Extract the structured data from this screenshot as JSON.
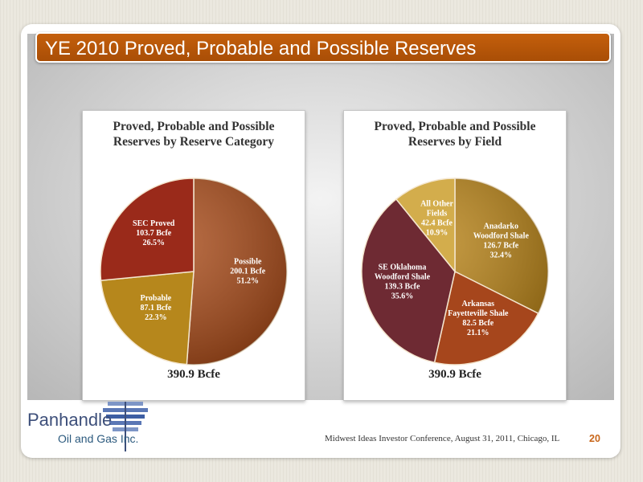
{
  "slide": {
    "title": "YE 2010 Proved, Probable and Possible Reserves",
    "footer_text": "Midwest Ideas Investor Conference, August 31, 2011, Chicago, IL",
    "page_number": "20",
    "logo": {
      "line1": "Panhandle",
      "line2": "Oil and Gas Inc."
    }
  },
  "chart_data": [
    {
      "type": "pie",
      "title_line1": "Proved, Probable and Possible",
      "title_line2": "Reserves by Reserve Category",
      "total": "390.9 Bcfe",
      "slices": [
        {
          "label": "Possible",
          "value_text": "200.1 Bcfe",
          "pct_text": "51.2%",
          "value": 200.1,
          "percent": 51.2,
          "color": "#a94d1c"
        },
        {
          "label": "Probable",
          "value_text": "87.1 Bcfe",
          "pct_text": "22.3%",
          "value": 87.1,
          "percent": 22.3,
          "color": "#b6871c"
        },
        {
          "label": "SEC Proved",
          "value_text": "103.7 Bcfe",
          "pct_text": "26.5%",
          "value": 103.7,
          "percent": 26.5,
          "color": "#9a2a1a"
        }
      ]
    },
    {
      "type": "pie",
      "title_line1": "Proved, Probable and Possible",
      "title_line2": "Reserves by Field",
      "total": "390.9 Bcfe",
      "slices": [
        {
          "label_lines": [
            "Anadarko",
            "Woodford Shale"
          ],
          "value_text": "126.7 Bcfe",
          "pct_text": "32.4%",
          "value": 126.7,
          "percent": 32.4,
          "color": "#b8841a"
        },
        {
          "label_lines": [
            "Arkansas",
            "Fayetteville Shale"
          ],
          "value_text": "82.5 Bcfe",
          "pct_text": "21.1%",
          "value": 82.5,
          "percent": 21.1,
          "color": "#a6461c"
        },
        {
          "label_lines": [
            "SE Oklahoma",
            "Woodford Shale"
          ],
          "value_text": "139.3 Bcfe",
          "pct_text": "35.6%",
          "value": 139.3,
          "percent": 35.6,
          "color": "#6e2a33"
        },
        {
          "label_lines": [
            "All Other",
            "Fields"
          ],
          "value_text": "42.4 Bcfe",
          "pct_text": "10.9%",
          "value": 42.4,
          "percent": 10.9,
          "color": "#d3ad4c"
        }
      ]
    }
  ]
}
